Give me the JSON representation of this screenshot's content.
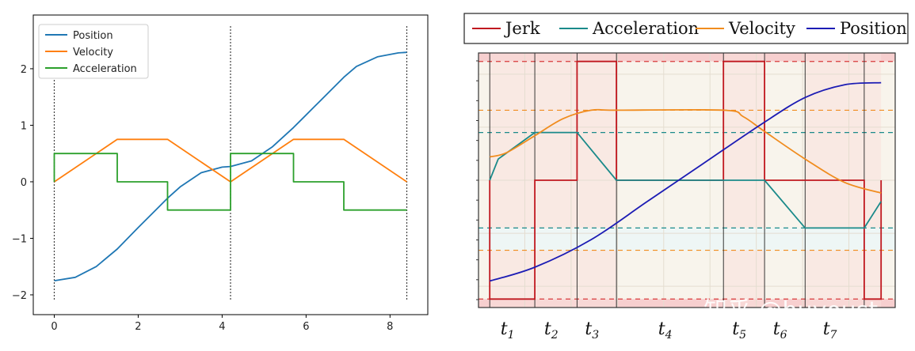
{
  "chart_data": [
    {
      "type": "line",
      "xlim": [
        -0.5,
        8.9
      ],
      "ylim": [
        -2.35,
        2.95
      ],
      "x_ticks": [
        0,
        2,
        4,
        6,
        8
      ],
      "x_tick_labels": [
        "0",
        "2",
        "4",
        "6",
        "8"
      ],
      "y_ticks": [
        -2,
        -1,
        0,
        1,
        2
      ],
      "y_tick_labels": [
        "−2",
        "−1",
        "0",
        "1",
        "2"
      ],
      "legend_position": "top-left",
      "grid": false,
      "vlines": [
        0,
        4.2,
        8.4
      ],
      "series": [
        {
          "name": "Position",
          "color": "#1f77b4",
          "x": [
            0,
            0.5,
            1.0,
            1.5,
            2.0,
            2.5,
            2.7,
            3.0,
            3.5,
            4.0,
            4.2,
            4.7,
            5.2,
            5.7,
            6.2,
            6.7,
            6.9,
            7.2,
            7.7,
            8.2,
            8.4
          ],
          "y": [
            -1.75,
            -1.69,
            -1.5,
            -1.19,
            -0.81,
            -0.44,
            -0.29,
            -0.09,
            0.16,
            0.26,
            0.27,
            0.37,
            0.62,
            0.96,
            1.33,
            1.7,
            1.85,
            2.04,
            2.21,
            2.28,
            2.29
          ]
        },
        {
          "name": "Velocity",
          "color": "#ff7f0e",
          "x": [
            0,
            1.5,
            2.7,
            4.2,
            5.7,
            6.9,
            8.4
          ],
          "y": [
            0,
            0.75,
            0.75,
            0,
            0.75,
            0.75,
            0
          ]
        },
        {
          "name": "Acceleration",
          "color": "#2ca02c",
          "step": true,
          "x": [
            0,
            0,
            1.5,
            1.5,
            2.7,
            2.7,
            4.2,
            4.2,
            5.7,
            5.7,
            6.9,
            6.9,
            8.4
          ],
          "y": [
            0,
            0.5,
            0.5,
            0,
            0,
            -0.5,
            -0.5,
            0.5,
            0.5,
            0,
            0,
            -0.5,
            -0.5
          ]
        }
      ]
    },
    {
      "type": "line",
      "xlim": [
        0,
        7.4
      ],
      "ylim": [
        -1.2,
        1.2
      ],
      "legend_position": "top",
      "phase_boundaries": [
        0.2,
        1.0,
        1.75,
        2.45,
        4.35,
        5.08,
        5.8,
        6.85
      ],
      "phase_labels": [
        {
          "main": "t",
          "sub": "1"
        },
        {
          "main": "t",
          "sub": "2"
        },
        {
          "main": "t",
          "sub": "3"
        },
        {
          "main": "t",
          "sub": "4"
        },
        {
          "main": "t",
          "sub": "5"
        },
        {
          "main": "t",
          "sub": "6"
        },
        {
          "main": "t",
          "sub": "7"
        }
      ],
      "series": [
        {
          "name": "Jerk",
          "color": "#c0181f",
          "x": [
            0.2,
            0.2,
            0.35,
            0.35,
            1.0,
            1.0,
            1.75,
            1.75,
            2.45,
            2.45,
            4.35,
            4.35,
            5.08,
            5.08,
            6.85,
            6.85,
            7.15,
            7.15
          ],
          "y": [
            0,
            -1.12,
            -1.12,
            -1.12,
            -1.12,
            0,
            0,
            1.12,
            1.12,
            0,
            0,
            1.12,
            1.12,
            0,
            0,
            -1.12,
            -1.12,
            0
          ]
        },
        {
          "name": "Acceleration",
          "color": "#1a8a8a",
          "x": [
            0.2,
            0.35,
            1.0,
            1.75,
            2.45,
            4.35,
            5.08,
            5.8,
            6.85,
            7.15
          ],
          "y": [
            0,
            0.2,
            0.45,
            0.45,
            0,
            0,
            0,
            -0.45,
            -0.45,
            -0.2
          ]
        },
        {
          "name": "Velocity",
          "color": "#f08c1e",
          "x": [
            0.2,
            0.5,
            1.0,
            1.5,
            2.0,
            2.45,
            4.35,
            4.7,
            5.08,
            5.8,
            6.5,
            7.15
          ],
          "y": [
            0.22,
            0.26,
            0.42,
            0.58,
            0.66,
            0.66,
            0.66,
            0.6,
            0.46,
            0.2,
            -0.02,
            -0.12
          ]
        },
        {
          "name": "Position",
          "color": "#1c1cb4",
          "x": [
            0.2,
            1.0,
            2.0,
            3.0,
            4.0,
            5.0,
            5.8,
            6.5,
            7.15
          ],
          "y": [
            -0.95,
            -0.82,
            -0.56,
            -0.2,
            0.16,
            0.52,
            0.78,
            0.9,
            0.92
          ]
        }
      ],
      "dashed_levels": [
        {
          "color": "#d83b3b",
          "y": [
            -1.12,
            1.12
          ]
        },
        {
          "color": "#1a8a8a",
          "y": [
            -0.45,
            0.45
          ]
        },
        {
          "color": "#f08c1e",
          "y": [
            -0.66,
            0.66
          ]
        }
      ]
    }
  ],
  "watermark": "知乎 @huyoust"
}
